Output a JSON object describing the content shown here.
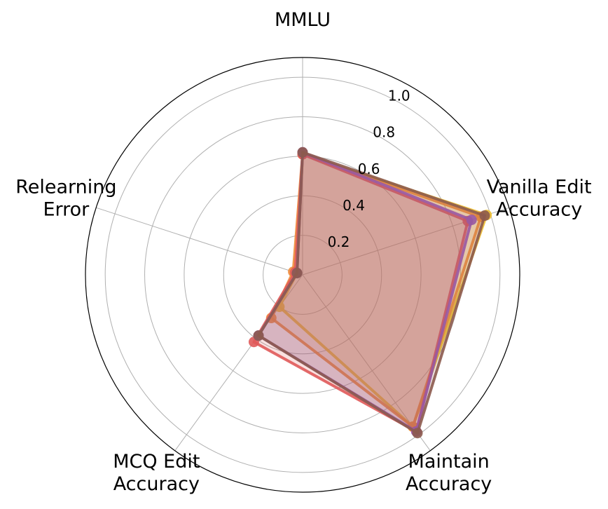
{
  "chart_data": {
    "type": "radar",
    "axes": [
      [
        "MMLU"
      ],
      [
        "Vanilla Edit",
        "Accuracy"
      ],
      [
        "Maintain",
        "Accuracy"
      ],
      [
        "MCQ Edit",
        "Accuracy"
      ],
      [
        "Relearning",
        "Error"
      ]
    ],
    "rlim": [
      0,
      1.1
    ],
    "r_ticks": [
      "0.2",
      "0.4",
      "0.6",
      "0.8",
      "1.0"
    ],
    "grid": true,
    "series": [
      {
        "color": "#f0c030",
        "values": [
          0.61,
          0.98,
          0.95,
          0.2,
          0.03
        ]
      },
      {
        "color": "#f08c3a",
        "values": [
          0.61,
          0.95,
          0.95,
          0.27,
          0.05
        ]
      },
      {
        "color": "#e05a5a",
        "values": [
          0.61,
          0.88,
          0.98,
          0.42,
          0.04
        ]
      },
      {
        "color": "#9b59b6",
        "values": [
          0.62,
          0.9,
          0.98,
          0.38,
          0.03
        ]
      },
      {
        "color": "#8c5a4e",
        "values": [
          0.62,
          0.97,
          0.99,
          0.38,
          0.03
        ]
      }
    ]
  }
}
